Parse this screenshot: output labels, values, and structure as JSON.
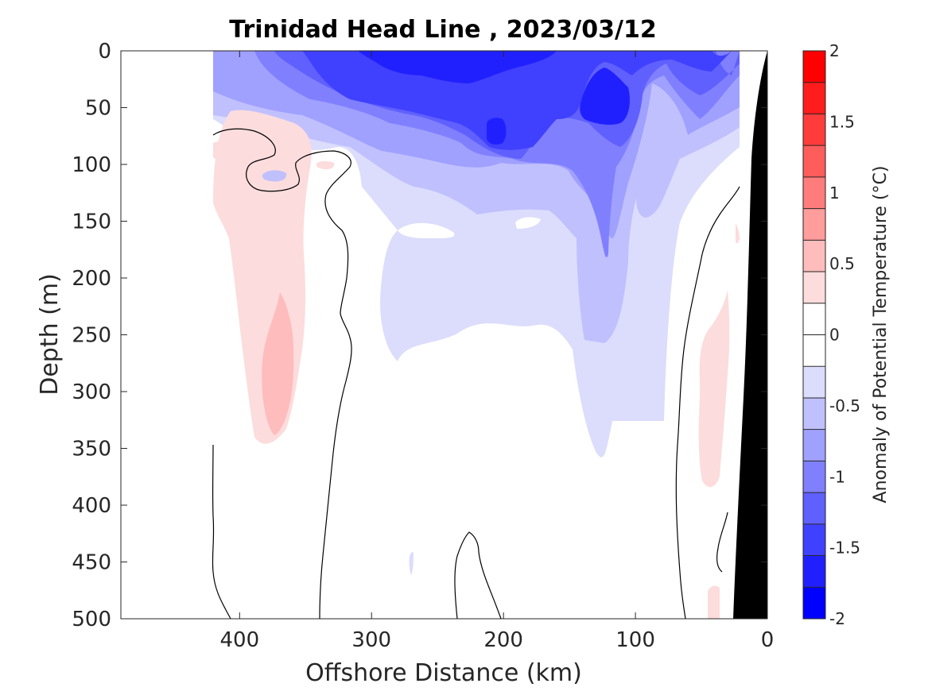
{
  "chart_data": {
    "type": "heatmap",
    "subtype": "filled-contour-section",
    "title": "Trinidad Head Line , 2023/03/12",
    "xlabel": "Offshore Distance (km)",
    "ylabel": "Depth (m)",
    "colorbar_label": "Anomaly of Potential Temperature (°C)",
    "xlim": [
      490,
      0
    ],
    "ylim": [
      0,
      500
    ],
    "x_reversed": true,
    "y_reversed": true,
    "x_ticks": [
      400,
      300,
      200,
      100,
      0
    ],
    "x_tick_labels": [
      "400",
      "300",
      "200",
      "100",
      "0"
    ],
    "y_ticks": [
      0,
      50,
      100,
      150,
      200,
      250,
      300,
      350,
      400,
      450,
      500
    ],
    "y_tick_labels": [
      "0",
      "50",
      "100",
      "150",
      "200",
      "250",
      "300",
      "350",
      "400",
      "450",
      "500"
    ],
    "colorbar": {
      "range": [
        -2,
        2
      ],
      "step": 0.25,
      "tick_values": [
        2,
        1.5,
        1,
        0.5,
        0,
        -0.5,
        -1,
        -1.5,
        -2
      ],
      "tick_labels": [
        "2",
        "1.5",
        "1",
        "0.5",
        "0",
        "-0.5",
        "-1",
        "-1.5",
        "-2"
      ],
      "colors": [
        "#0000ff",
        "#2020ff",
        "#4040ff",
        "#6060ff",
        "#8080ff",
        "#a0a0ff",
        "#c0c0ff",
        "#dcdcfc",
        "#ffffff",
        "#ffffff",
        "#fcdcdc",
        "#ffbcbc",
        "#ff9c9c",
        "#ff7c7c",
        "#ff5c5c",
        "#ff3c3c",
        "#ff1c1c",
        "#ff0000"
      ]
    },
    "data_extent_x": [
      20,
      420
    ],
    "zero_contour_color": "#000000",
    "bathymetry_color": "#000000"
  }
}
